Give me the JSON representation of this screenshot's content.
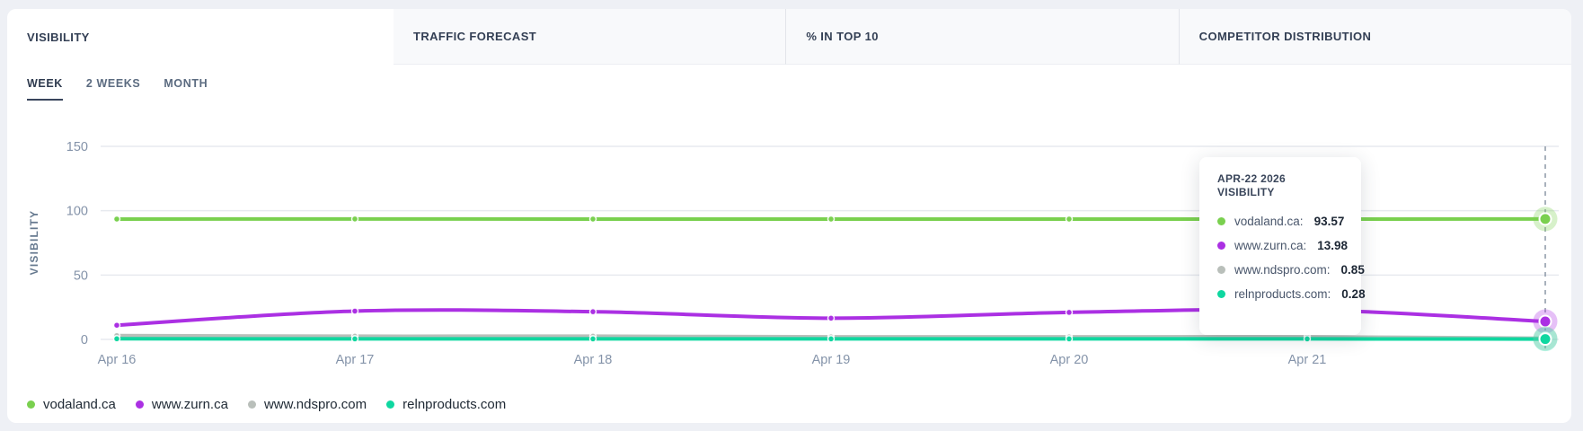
{
  "tabs": [
    {
      "label": "VISIBILITY",
      "active": true
    },
    {
      "label": "TRAFFIC FORECAST",
      "active": false
    },
    {
      "label": "% IN TOP 10",
      "active": false
    },
    {
      "label": "COMPETITOR DISTRIBUTION",
      "active": false
    }
  ],
  "ranges": [
    {
      "label": "WEEK",
      "active": true
    },
    {
      "label": "2 WEEKS",
      "active": false
    },
    {
      "label": "MONTH",
      "active": false
    }
  ],
  "chart_data": {
    "type": "line",
    "title": "",
    "ylabel": "VISIBILITY",
    "ylim": [
      0,
      150
    ],
    "yticks": [
      0,
      50,
      100,
      150
    ],
    "grid": true,
    "legend_position": "bottom-left",
    "x": [
      "Apr 16",
      "Apr 17",
      "Apr 18",
      "Apr 19",
      "Apr 20",
      "Apr 21",
      "Apr 22"
    ],
    "hover_index": 6,
    "hover_label_hidden": true,
    "series": [
      {
        "name": "vodaland.ca",
        "color": "#7ad04f",
        "values": [
          93.5,
          93.6,
          93.5,
          93.5,
          93.5,
          93.5,
          93.57
        ]
      },
      {
        "name": "www.zurn.ca",
        "color": "#ab30e3",
        "values": [
          11,
          22,
          21.5,
          16.5,
          21,
          23,
          13.98
        ]
      },
      {
        "name": "www.ndspro.com",
        "color": "#b9bfba",
        "values": [
          3,
          2.5,
          2.5,
          2,
          2,
          2,
          0.85
        ]
      },
      {
        "name": "relnproducts.com",
        "color": "#0fd7a0",
        "values": [
          0.5,
          0.4,
          0.4,
          0.4,
          0.4,
          0.4,
          0.28
        ]
      }
    ]
  },
  "tooltip": {
    "date": "APR-22 2026",
    "metric": "VISIBILITY",
    "rows": [
      {
        "label": "vodaland.ca:",
        "value": "93.57",
        "color": "#7ad04f"
      },
      {
        "label": "www.zurn.ca:",
        "value": "13.98",
        "color": "#ab30e3"
      },
      {
        "label": "www.ndspro.com:",
        "value": "0.85",
        "color": "#b9bfba"
      },
      {
        "label": "relnproducts.com:",
        "value": "0.28",
        "color": "#0fd7a0"
      }
    ]
  },
  "colors": {
    "page_bg": "#eef0f5",
    "card_bg": "#ffffff",
    "tab_bg": "#f8f9fb",
    "grid": "#e7eaef",
    "dashed_line": "#8b97a6",
    "axis_text": "#8493a9"
  }
}
